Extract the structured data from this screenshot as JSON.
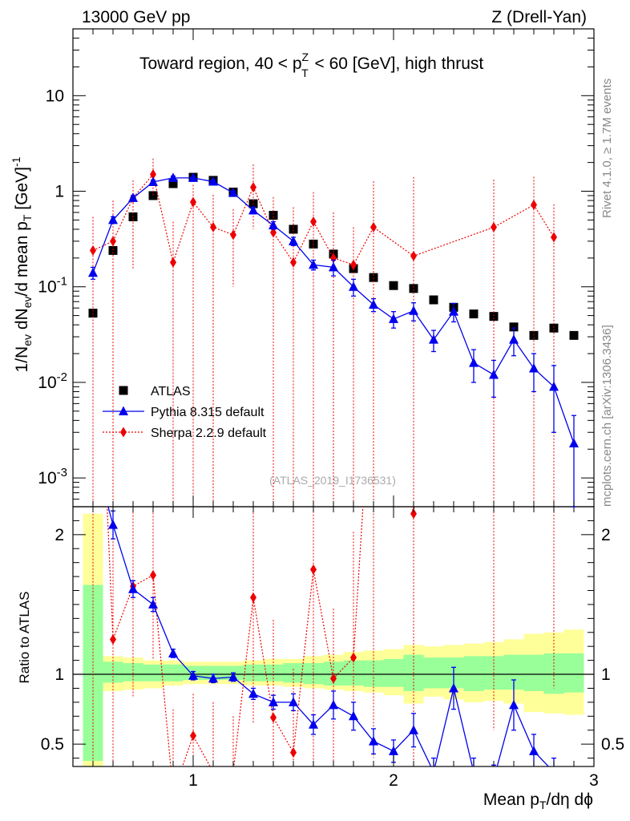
{
  "header": {
    "left": "13000 GeV pp",
    "right": "Z (Drell-Yan)"
  },
  "side": {
    "rivet": "Rivet 4.1.0, ≥ 1.7M events",
    "mcplots": "mcplots.cern.ch [arXiv:1306.3436]"
  },
  "chart_data": {
    "type": "scatter",
    "title_main": "Toward region, 40 < p",
    "title_sup": "Z",
    "title_sub": "T",
    "title_tail": " < 60 [GeV], high thrust",
    "watermark": "(ATLAS_2019_I1736531)",
    "ylabel": "1/N_ev dN_ev/d mean p_T [GeV]^-1",
    "ylabel_ratio": "Ratio to ATLAS",
    "xlabel": "Mean p_T/dη dϕ",
    "xlim": [
      0.4,
      3.0
    ],
    "ylim": [
      0.0005,
      50
    ],
    "ylim_ratio": [
      0.34,
      2.2
    ],
    "yscale": "log",
    "x_ticks": [
      "1",
      "2",
      "3"
    ],
    "y_ticks": [
      "10^-3",
      "10^-2",
      "10^-1",
      "1",
      "10"
    ],
    "ratio_ticks": [
      "0.5",
      "1",
      "2"
    ],
    "legend_position": "lower-left",
    "series": [
      {
        "name": "ATLAS",
        "color": "#000000",
        "marker": "square",
        "x": [
          0.5,
          0.6,
          0.7,
          0.8,
          0.9,
          1.0,
          1.1,
          1.2,
          1.3,
          1.4,
          1.5,
          1.6,
          1.7,
          1.8,
          1.9,
          2.0,
          2.1,
          2.2,
          2.3,
          2.4,
          2.5,
          2.6,
          2.7,
          2.8,
          2.9
        ],
        "y": [
          0.053,
          0.24,
          0.54,
          0.9,
          1.2,
          1.4,
          1.3,
          0.98,
          0.74,
          0.56,
          0.4,
          0.28,
          0.22,
          0.155,
          0.125,
          0.103,
          0.096,
          0.073,
          0.061,
          0.052,
          0.049,
          0.038,
          0.031,
          0.037,
          0.031
        ]
      },
      {
        "name": "Pythia 8.315 default",
        "color": "#0000ee",
        "marker": "triangle",
        "x": [
          0.5,
          0.6,
          0.7,
          0.8,
          0.9,
          1.0,
          1.1,
          1.2,
          1.3,
          1.4,
          1.5,
          1.6,
          1.7,
          1.8,
          1.9,
          2.0,
          2.1,
          2.2,
          2.3,
          2.4,
          2.5,
          2.6,
          2.7,
          2.8,
          2.9
        ],
        "y": [
          0.14,
          0.5,
          0.85,
          1.25,
          1.38,
          1.38,
          1.26,
          0.96,
          0.63,
          0.44,
          0.3,
          0.17,
          0.16,
          0.1,
          0.065,
          0.046,
          0.056,
          0.028,
          0.055,
          0.016,
          0.012,
          0.028,
          0.014,
          0.009,
          0.0023
        ],
        "err_lo": [
          0.02,
          0.04,
          0.05,
          0.06,
          0.06,
          0.06,
          0.06,
          0.05,
          0.05,
          0.04,
          0.03,
          0.02,
          0.03,
          0.02,
          0.01,
          0.009,
          0.012,
          0.007,
          0.012,
          0.006,
          0.005,
          0.009,
          0.006,
          0.006,
          0.0023
        ],
        "err_hi": [
          0.02,
          0.04,
          0.05,
          0.06,
          0.06,
          0.06,
          0.06,
          0.05,
          0.05,
          0.04,
          0.03,
          0.02,
          0.03,
          0.02,
          0.01,
          0.009,
          0.012,
          0.007,
          0.012,
          0.006,
          0.005,
          0.009,
          0.006,
          0.006,
          0.0022
        ],
        "ratio": [
          2.6,
          2.07,
          1.61,
          1.5,
          1.15,
          0.99,
          0.97,
          0.98,
          0.86,
          0.8,
          0.8,
          0.64,
          0.78,
          0.7,
          0.52,
          0.45,
          0.6,
          0.3,
          0.9,
          0.3,
          0.25,
          0.78,
          0.45,
          0.3,
          0.1
        ],
        "ratio_err": [
          0.3,
          0.1,
          0.06,
          0.05,
          0.03,
          0.03,
          0.03,
          0.03,
          0.04,
          0.05,
          0.06,
          0.07,
          0.1,
          0.1,
          0.09,
          0.08,
          0.12,
          0.1,
          0.15,
          0.1,
          0.1,
          0.18,
          0.12,
          0.1,
          0.1
        ]
      },
      {
        "name": "Sherpa 2.2.9 default",
        "color": "#ee0000",
        "marker": "diamond",
        "x": [
          0.5,
          0.6,
          0.7,
          0.8,
          0.9,
          1.0,
          1.1,
          1.2,
          1.3,
          1.4,
          1.5,
          1.6,
          1.7,
          1.8,
          1.9,
          2.1,
          2.5,
          2.7,
          2.8
        ],
        "y": [
          0.24,
          0.3,
          0.85,
          1.5,
          0.18,
          0.77,
          0.42,
          0.35,
          1.1,
          0.37,
          0.18,
          0.48,
          0.2,
          0.17,
          0.42,
          0.21,
          0.42,
          0.72,
          0.33
        ],
        "err_lo": [
          0.24,
          0.3,
          0.7,
          0.6,
          0.18,
          0.77,
          0.42,
          0.25,
          0.7,
          0.37,
          0.18,
          0.48,
          0.2,
          0.17,
          0.42,
          0.21,
          0.42,
          0.72,
          0.33
        ],
        "err_hi": [
          0.3,
          0.5,
          0.45,
          0.7,
          0.3,
          0.4,
          0.5,
          0.3,
          0.8,
          0.5,
          0.5,
          0.5,
          0.4,
          0.25,
          0.85,
          1.2,
          0.9,
          0.7,
          0.4
        ],
        "ratio": [
          4.5,
          1.25,
          1.63,
          1.71,
          0.15,
          0.56,
          0.3,
          0.3,
          1.55,
          0.69,
          0.44,
          1.75,
          0.97,
          1.12,
          3.4,
          2.15,
          8.6,
          23.0,
          8.9
        ],
        "ratio_err_lo": [
          4.5,
          1.25,
          0.8,
          0.6,
          0.15,
          0.56,
          0.3,
          0.3,
          0.9,
          0.6,
          0.44,
          1.5,
          0.6,
          0.5,
          3.0,
          1.9,
          8.0,
          20,
          8
        ],
        "ratio_err_hi": [
          3,
          1,
          0.9,
          0.7,
          0.6,
          0.3,
          0.5,
          0.4,
          0.7,
          0.7,
          0.6,
          0.9,
          0.5,
          0.9,
          3,
          3,
          5,
          10,
          5
        ]
      }
    ],
    "ratio_band": {
      "edges": [
        0.45,
        0.55,
        0.65,
        0.75,
        0.85,
        0.95,
        1.05,
        1.15,
        1.25,
        1.35,
        1.45,
        1.55,
        1.65,
        1.75,
        1.85,
        1.95,
        2.05,
        2.15,
        2.25,
        2.35,
        2.45,
        2.55,
        2.65,
        2.75,
        2.85,
        2.95
      ],
      "green_lo": [
        0.38,
        0.94,
        0.95,
        0.95,
        0.95,
        0.96,
        0.96,
        0.96,
        0.95,
        0.95,
        0.94,
        0.93,
        0.92,
        0.92,
        0.91,
        0.91,
        0.88,
        0.9,
        0.9,
        0.88,
        0.89,
        0.89,
        0.88,
        0.86,
        0.87
      ],
      "green_hi": [
        1.64,
        1.09,
        1.08,
        1.07,
        1.07,
        1.06,
        1.06,
        1.06,
        1.07,
        1.07,
        1.08,
        1.08,
        1.09,
        1.1,
        1.1,
        1.11,
        1.14,
        1.12,
        1.12,
        1.13,
        1.13,
        1.14,
        1.14,
        1.15,
        1.15
      ],
      "yellow_lo": [
        0.34,
        0.88,
        0.89,
        0.9,
        0.92,
        0.93,
        0.93,
        0.93,
        0.92,
        0.92,
        0.91,
        0.9,
        0.89,
        0.88,
        0.87,
        0.85,
        0.79,
        0.84,
        0.82,
        0.8,
        0.81,
        0.79,
        0.73,
        0.72,
        0.71
      ],
      "yellow_hi": [
        2.15,
        1.13,
        1.12,
        1.1,
        1.1,
        1.09,
        1.09,
        1.09,
        1.1,
        1.11,
        1.11,
        1.13,
        1.14,
        1.16,
        1.17,
        1.18,
        1.21,
        1.2,
        1.21,
        1.22,
        1.23,
        1.25,
        1.29,
        1.3,
        1.32
      ]
    }
  }
}
